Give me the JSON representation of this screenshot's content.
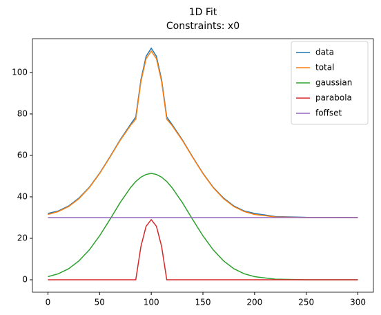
{
  "chart_data": {
    "type": "line",
    "title": "1D Fit",
    "subtitle": "Constraints: x0",
    "x": [
      0,
      10,
      20,
      30,
      40,
      50,
      60,
      70,
      80,
      85,
      90,
      95,
      100,
      105,
      110,
      115,
      120,
      130,
      140,
      150,
      160,
      170,
      180,
      190,
      200,
      220,
      250,
      300
    ],
    "series": [
      {
        "name": "data",
        "color": "#1f77b4",
        "values": [
          32.0,
          33.2,
          35.6,
          39.4,
          44.6,
          51.4,
          59.3,
          67.6,
          75.0,
          78.5,
          96.5,
          107.8,
          111.7,
          107.8,
          96.5,
          78.5,
          75.0,
          67.6,
          59.3,
          51.4,
          44.6,
          39.4,
          35.6,
          33.2,
          32.0,
          30.5,
          30.1,
          30.0
        ]
      },
      {
        "name": "total",
        "color": "#ff7f0e",
        "values": [
          31.5,
          32.9,
          35.3,
          39.1,
          44.4,
          51.2,
          59.1,
          67.3,
          74.5,
          77.4,
          95.6,
          106.6,
          110.3,
          106.6,
          95.6,
          77.4,
          74.5,
          67.3,
          59.1,
          51.2,
          44.4,
          39.1,
          35.3,
          32.9,
          31.5,
          30.3,
          30.0,
          30.0
        ]
      },
      {
        "name": "gaussian",
        "color": "#2ca02c",
        "values": [
          1.5,
          2.9,
          5.3,
          9.1,
          14.4,
          21.2,
          29.1,
          37.3,
          44.5,
          47.4,
          49.5,
          50.8,
          51.3,
          50.8,
          49.5,
          47.4,
          44.5,
          37.3,
          29.1,
          21.2,
          14.4,
          9.1,
          5.3,
          2.9,
          1.5,
          0.3,
          0.0,
          0.0
        ]
      },
      {
        "name": "parabola",
        "color": "#d62728",
        "values": [
          0,
          0,
          0,
          0,
          0,
          0,
          0,
          0,
          0,
          0,
          16.1,
          25.8,
          29,
          25.8,
          16.1,
          0,
          0,
          0,
          0,
          0,
          0,
          0,
          0,
          0,
          0,
          0,
          0,
          0
        ]
      },
      {
        "name": "foffset",
        "color": "#9467bd",
        "values": [
          30,
          30,
          30,
          30,
          30,
          30,
          30,
          30,
          30,
          30,
          30,
          30,
          30,
          30,
          30,
          30,
          30,
          30,
          30,
          30,
          30,
          30,
          30,
          30,
          30,
          30,
          30,
          30
        ]
      }
    ],
    "xlim": [
      -15,
      315
    ],
    "xticks": [
      0,
      50,
      100,
      150,
      200,
      250,
      300
    ],
    "ylim": [
      -6,
      116.3
    ],
    "yticks": [
      0,
      20,
      40,
      60,
      80,
      100
    ],
    "legend": "upper right"
  }
}
